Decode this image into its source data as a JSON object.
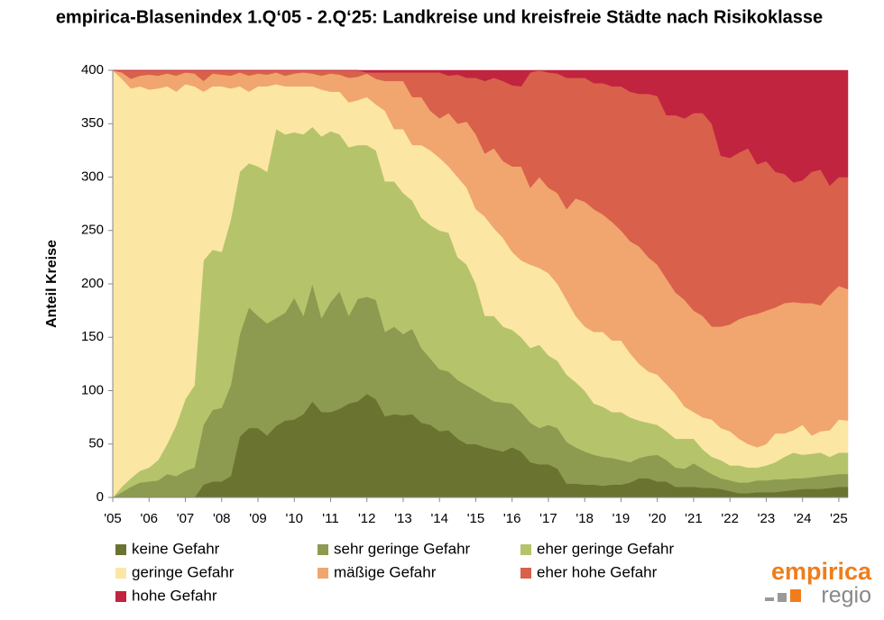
{
  "chart_data": {
    "type": "stacked_area",
    "title": "empirica-Blasenindex 1.Q‘05 - 2.Q‘25: Landkreise und kreisfreie Städte nach Risikoklasse",
    "y_label": "Anteil Kreise",
    "logo": {
      "brand": "empirica",
      "sub": "regio"
    },
    "xlim": [
      2005,
      2025.25
    ],
    "xticks": [
      {
        "value": 2005,
        "label": "'05"
      },
      {
        "value": 2006,
        "label": "'06"
      },
      {
        "value": 2007,
        "label": "'07"
      },
      {
        "value": 2008,
        "label": "'08"
      },
      {
        "value": 2009,
        "label": "'09"
      },
      {
        "value": 2010,
        "label": "'10"
      },
      {
        "value": 2011,
        "label": "'11"
      },
      {
        "value": 2012,
        "label": "'12"
      },
      {
        "value": 2013,
        "label": "'13"
      },
      {
        "value": 2014,
        "label": "'14"
      },
      {
        "value": 2015,
        "label": "'15"
      },
      {
        "value": 2016,
        "label": "'16"
      },
      {
        "value": 2017,
        "label": "'17"
      },
      {
        "value": 2018,
        "label": "'18"
      },
      {
        "value": 2019,
        "label": "'19"
      },
      {
        "value": 2020,
        "label": "'20"
      },
      {
        "value": 2021,
        "label": "'21"
      },
      {
        "value": 2022,
        "label": "'22"
      },
      {
        "value": 2023,
        "label": "'23"
      },
      {
        "value": 2024,
        "label": "'24"
      },
      {
        "value": 2025,
        "label": "'25"
      }
    ],
    "ylim": [
      0,
      400
    ],
    "yticks": [
      0,
      50,
      100,
      150,
      200,
      250,
      300,
      350,
      400
    ],
    "x": [
      2005,
      2005.25,
      2005.5,
      2005.75,
      2006,
      2006.25,
      2006.5,
      2006.75,
      2007,
      2007.25,
      2007.5,
      2007.75,
      2008,
      2008.25,
      2008.5,
      2008.75,
      2009,
      2009.25,
      2009.5,
      2009.75,
      2010,
      2010.25,
      2010.5,
      2010.75,
      2011,
      2011.25,
      2011.5,
      2011.75,
      2012,
      2012.25,
      2012.5,
      2012.75,
      2013,
      2013.25,
      2013.5,
      2013.75,
      2014,
      2014.25,
      2014.5,
      2014.75,
      2015,
      2015.25,
      2015.5,
      2015.75,
      2016,
      2016.25,
      2016.5,
      2016.75,
      2017,
      2017.25,
      2017.5,
      2017.75,
      2018,
      2018.25,
      2018.5,
      2018.75,
      2019,
      2019.25,
      2019.5,
      2019.75,
      2020,
      2020.25,
      2020.5,
      2020.75,
      2021,
      2021.25,
      2021.5,
      2021.75,
      2022,
      2022.25,
      2022.5,
      2022.75,
      2023,
      2023.25,
      2023.5,
      2023.75,
      2024,
      2024.25,
      2024.5,
      2024.75,
      2025,
      2025.25
    ],
    "series": [
      {
        "name": "keine Gefahr",
        "color": "#6b7330",
        "values": [
          0,
          0,
          0,
          0,
          0,
          0,
          0,
          0,
          0,
          0,
          12,
          15,
          15,
          20,
          57,
          65,
          65,
          58,
          67,
          72,
          73,
          78,
          90,
          80,
          80,
          83,
          88,
          90,
          97,
          92,
          76,
          78,
          77,
          78,
          70,
          68,
          62,
          63,
          55,
          50,
          50,
          47,
          45,
          43,
          47,
          43,
          33,
          31,
          31,
          27,
          13,
          13,
          12,
          12,
          11,
          12,
          12,
          14,
          18,
          18,
          15,
          15,
          10,
          10,
          10,
          9,
          9,
          8,
          6,
          4,
          4,
          5,
          5,
          5,
          6,
          7,
          8,
          8,
          8,
          9,
          10,
          10
        ]
      },
      {
        "name": "sehr geringe Gefahr",
        "color": "#8c9b50",
        "values": [
          0,
          5,
          10,
          14,
          15,
          16,
          22,
          20,
          25,
          28,
          56,
          67,
          69,
          85,
          96,
          113,
          105,
          105,
          101,
          101,
          114,
          92,
          110,
          88,
          103,
          110,
          82,
          96,
          91,
          93,
          79,
          82,
          76,
          80,
          70,
          62,
          58,
          55,
          55,
          55,
          50,
          48,
          45,
          46,
          41,
          37,
          37,
          34,
          37,
          38,
          39,
          34,
          31,
          28,
          27,
          25,
          23,
          19,
          19,
          21,
          25,
          20,
          18,
          17,
          22,
          18,
          13,
          10,
          10,
          10,
          10,
          11,
          11,
          12,
          11,
          11,
          10,
          11,
          12,
          12,
          12,
          12
        ]
      },
      {
        "name": "eher geringe Gefahr",
        "color": "#b5c46a",
        "values": [
          0,
          5,
          8,
          11,
          13,
          19,
          28,
          48,
          67,
          77,
          154,
          150,
          146,
          155,
          152,
          135,
          140,
          142,
          177,
          167,
          155,
          170,
          147,
          170,
          160,
          147,
          158,
          144,
          142,
          140,
          141,
          136,
          132,
          120,
          122,
          125,
          130,
          130,
          115,
          113,
          100,
          75,
          80,
          71,
          69,
          70,
          70,
          78,
          65,
          63,
          63,
          61,
          57,
          48,
          47,
          43,
          45,
          42,
          35,
          31,
          28,
          27,
          27,
          28,
          23,
          18,
          16,
          17,
          14,
          16,
          14,
          12,
          14,
          16,
          21,
          24,
          22,
          22,
          22,
          17,
          20,
          20
        ]
      },
      {
        "name": "geringe Gefahr",
        "color": "#fce6a4",
        "values": [
          400,
          382,
          365,
          360,
          354,
          348,
          335,
          312,
          295,
          280,
          158,
          153,
          155,
          123,
          80,
          67,
          75,
          80,
          42,
          45,
          43,
          45,
          38,
          44,
          37,
          40,
          42,
          42,
          45,
          43,
          66,
          49,
          60,
          52,
          68,
          70,
          68,
          62,
          75,
          72,
          70,
          93,
          82,
          83,
          73,
          72,
          78,
          72,
          77,
          72,
          70,
          62,
          60,
          67,
          70,
          67,
          67,
          60,
          53,
          48,
          47,
          44,
          42,
          30,
          25,
          30,
          35,
          30,
          32,
          25,
          22,
          19,
          20,
          27,
          22,
          21,
          28,
          17,
          20,
          25,
          31,
          30
        ]
      },
      {
        "name": "mäßige Gefahr",
        "color": "#f0a66e",
        "values": [
          0,
          6,
          9,
          10,
          14,
          12,
          12,
          15,
          11,
          12,
          10,
          12,
          11,
          12,
          13,
          15,
          12,
          11,
          11,
          10,
          12,
          13,
          12,
          13,
          17,
          16,
          23,
          22,
          22,
          24,
          28,
          45,
          45,
          45,
          45,
          37,
          37,
          50,
          50,
          62,
          70,
          59,
          75,
          72,
          80,
          88,
          72,
          85,
          80,
          85,
          85,
          110,
          117,
          115,
          110,
          111,
          103,
          105,
          110,
          107,
          103,
          99,
          95,
          100,
          95,
          95,
          87,
          95,
          100,
          112,
          120,
          125,
          125,
          118,
          122,
          120,
          114,
          124,
          118,
          127,
          125,
          123
        ]
      },
      {
        "name": "eher hohe Gefahr",
        "color": "#d9604a",
        "values": [
          0,
          2,
          8,
          5,
          4,
          5,
          3,
          5,
          2,
          3,
          10,
          3,
          4,
          5,
          2,
          5,
          3,
          4,
          2,
          5,
          3,
          2,
          3,
          5,
          3,
          4,
          7,
          6,
          1,
          6,
          8,
          8,
          8,
          23,
          23,
          36,
          43,
          35,
          46,
          41,
          53,
          68,
          66,
          75,
          76,
          75,
          108,
          100,
          108,
          112,
          123,
          113,
          116,
          118,
          123,
          127,
          135,
          140,
          143,
          153,
          158,
          153,
          166,
          170,
          185,
          190,
          190,
          160,
          156,
          156,
          157,
          140,
          140,
          127,
          121,
          112,
          115,
          123,
          127,
          102,
          102,
          105
        ]
      },
      {
        "name": "hohe Gefahr",
        "color": "#c0243f",
        "values": [
          0,
          0,
          0,
          0,
          0,
          0,
          0,
          0,
          0,
          0,
          0,
          0,
          0,
          0,
          0,
          0,
          0,
          0,
          0,
          0,
          0,
          0,
          0,
          0,
          0,
          0,
          0,
          0,
          2,
          2,
          2,
          2,
          2,
          2,
          2,
          2,
          2,
          5,
          4,
          7,
          7,
          10,
          7,
          10,
          14,
          15,
          2,
          0,
          2,
          3,
          7,
          7,
          7,
          12,
          12,
          15,
          15,
          20,
          22,
          22,
          24,
          42,
          42,
          45,
          40,
          40,
          50,
          80,
          82,
          77,
          73,
          88,
          85,
          95,
          97,
          105,
          103,
          95,
          93,
          108,
          100,
          100
        ]
      }
    ]
  }
}
